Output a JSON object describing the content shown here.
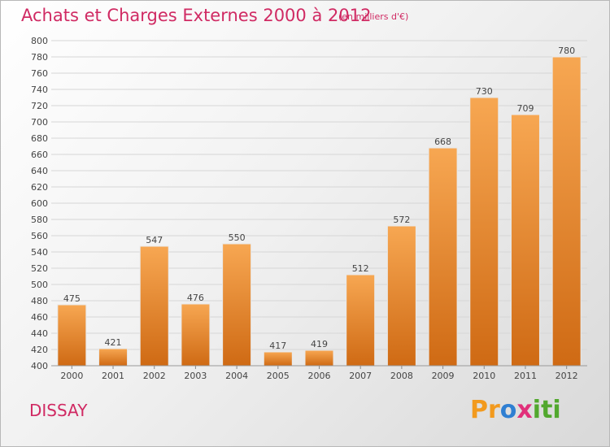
{
  "header": {
    "title": "Achats et Charges Externes 2000 à 2012",
    "unit": "(en milliers d'€)"
  },
  "footer": {
    "city": "DISSAY",
    "logo": [
      "Pr",
      "o",
      "x",
      "iti"
    ]
  },
  "colors": {
    "accent": "#d02a63",
    "bar_top": "#f7a752",
    "bar_bottom": "#cf6a14",
    "grid": "#d6d6d6"
  },
  "chart_data": {
    "type": "bar",
    "title": "Achats et Charges Externes 2000 à 2012",
    "subtitle": "(en milliers d'€)",
    "categories": [
      "2000",
      "2001",
      "2002",
      "2003",
      "2004",
      "2005",
      "2006",
      "2007",
      "2008",
      "2009",
      "2010",
      "2011",
      "2012"
    ],
    "values": [
      475,
      421,
      547,
      476,
      550,
      417,
      419,
      512,
      572,
      668,
      730,
      709,
      780
    ],
    "xlabel": "",
    "ylabel": "",
    "ylim": [
      400,
      800
    ],
    "ytick_step": 20,
    "grid": true
  }
}
